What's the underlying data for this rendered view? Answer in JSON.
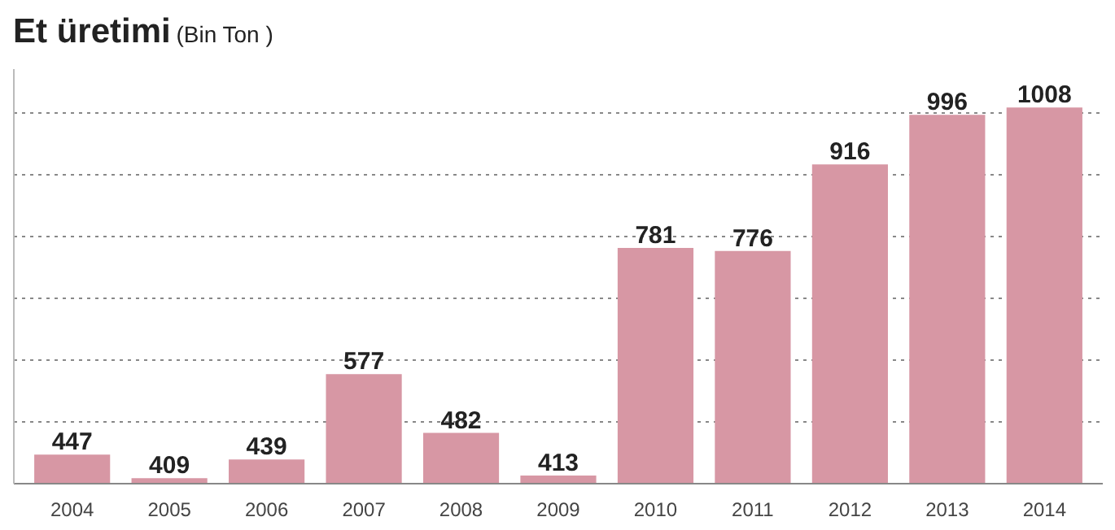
{
  "chart_data": {
    "type": "bar",
    "title": "Et üretimi",
    "subtitle": "(Bin Ton )",
    "categories": [
      "2004",
      "2005",
      "2006",
      "2007",
      "2008",
      "2009",
      "2010",
      "2011",
      "2012",
      "2013",
      "2014"
    ],
    "values": [
      447,
      409,
      439,
      577,
      482,
      413,
      781,
      776,
      916,
      996,
      1008
    ],
    "color": "#d797a4",
    "data_labels": true,
    "ylim": [
      400,
      1070
    ],
    "grid": "y",
    "tick_labels": "x"
  }
}
